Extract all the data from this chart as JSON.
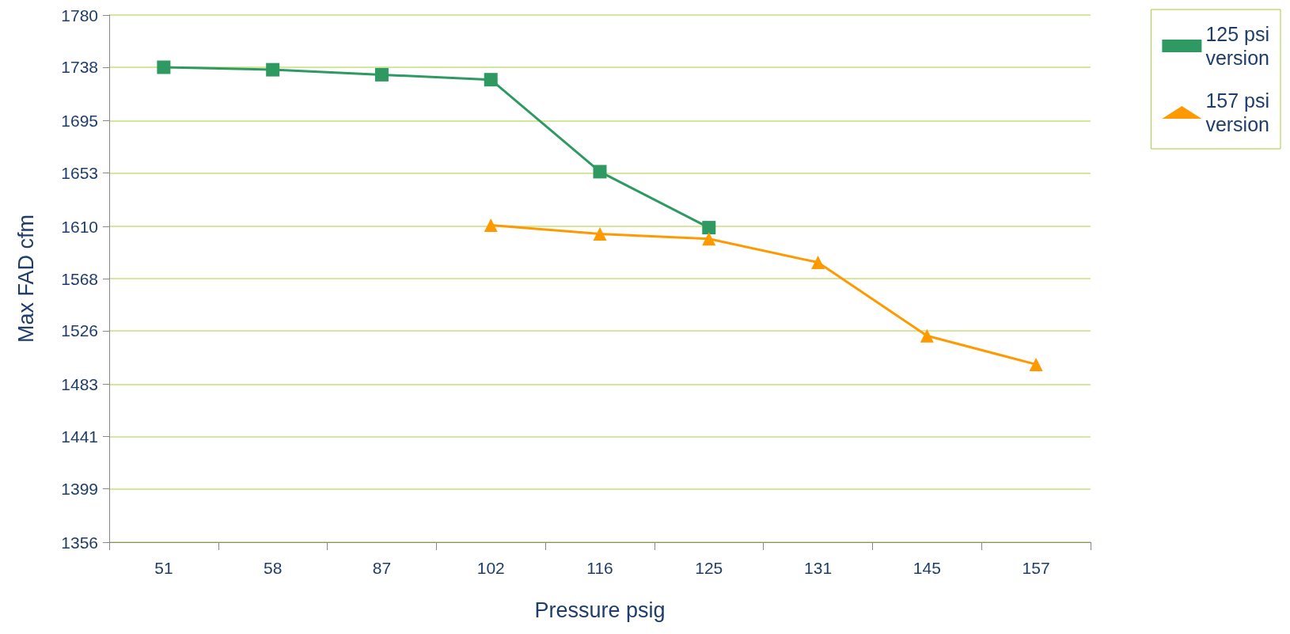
{
  "chart_data": {
    "type": "line",
    "xlabel": "Pressure psig",
    "ylabel": "Max FAD cfm",
    "categories": [
      "51",
      "58",
      "87",
      "102",
      "116",
      "125",
      "131",
      "145",
      "157"
    ],
    "series": [
      {
        "name": "125 psi version",
        "color": "#2e9a62",
        "marker": "square",
        "values": [
          1738,
          1736,
          1732,
          1728,
          1654,
          1609,
          null,
          null,
          null
        ]
      },
      {
        "name": "157 psi version",
        "color": "#ff9900",
        "marker": "triangle",
        "values": [
          null,
          null,
          null,
          1611,
          1604,
          1600,
          1581,
          1522,
          1499
        ]
      }
    ],
    "ylim": [
      1356,
      1780
    ],
    "yticks": [
      1356,
      1399,
      1441,
      1483,
      1526,
      1568,
      1610,
      1653,
      1695,
      1738,
      1780
    ],
    "grid": "y",
    "legend": "top right",
    "line_style": "solid"
  }
}
